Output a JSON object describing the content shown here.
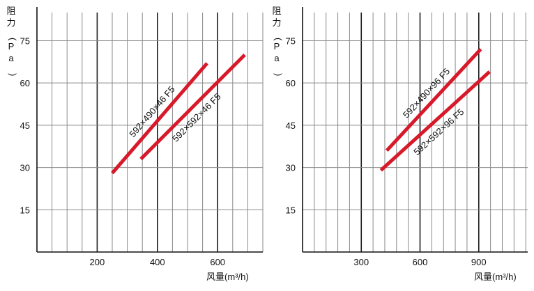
{
  "chart_data": [
    {
      "type": "line",
      "ylabel": "阻力(Pa)",
      "xlabel": "风量(m³/h)",
      "xlim": [
        0,
        750
      ],
      "ylim": [
        0,
        85
      ],
      "xticks": [
        200,
        400,
        600
      ],
      "yticks": [
        15,
        30,
        45,
        60,
        75
      ],
      "x_minor_step": 50,
      "grid": true,
      "series": [
        {
          "name": "592×490×46 F5",
          "color": "#d7192a",
          "points": [
            [
              250,
              28
            ],
            [
              565,
              67
            ]
          ]
        },
        {
          "name": "592×592×46 F5",
          "color": "#d7192a",
          "points": [
            [
              345,
              33
            ],
            [
              690,
              70
            ]
          ]
        }
      ]
    },
    {
      "type": "line",
      "ylabel": "阻力(Pa)",
      "xlabel": "风量(m³/h)",
      "xlim": [
        0,
        1150
      ],
      "ylim": [
        0,
        85
      ],
      "xticks": [
        300,
        600,
        900
      ],
      "yticks": [
        15,
        30,
        45,
        60,
        75
      ],
      "x_minor_step": 60,
      "grid": true,
      "series": [
        {
          "name": "592×490×96 F5",
          "color": "#d7192a",
          "points": [
            [
              430,
              36
            ],
            [
              910,
              72
            ]
          ]
        },
        {
          "name": "592×592×96 F5",
          "color": "#d7192a",
          "points": [
            [
              400,
              29
            ],
            [
              955,
              64
            ]
          ]
        }
      ]
    }
  ]
}
